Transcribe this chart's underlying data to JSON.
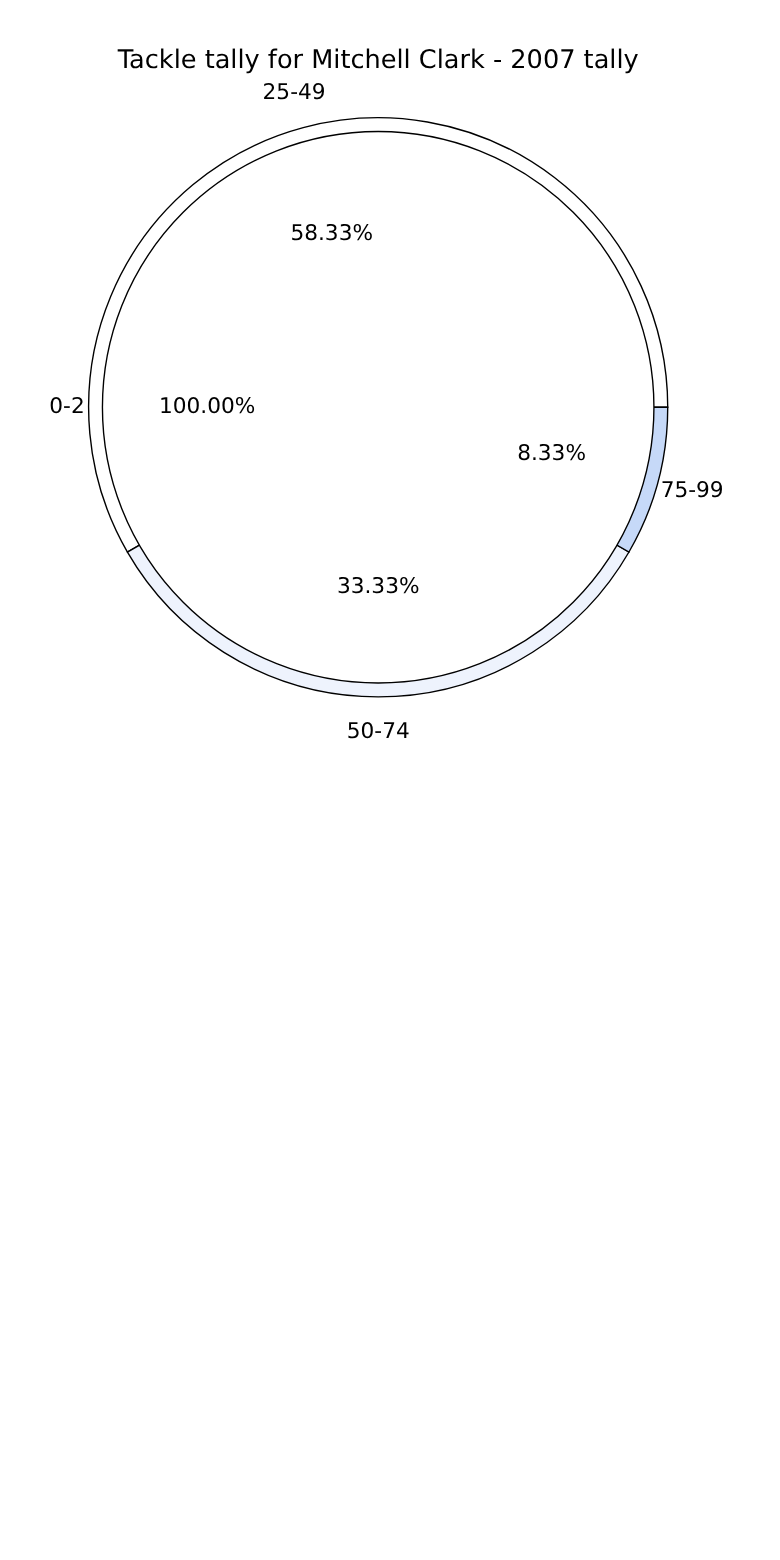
{
  "chart_data": [
    {
      "type": "pie",
      "title": "Tackle tally for Mitchell Clark - 2007 tally",
      "categories": [
        "0-2"
      ],
      "values": [
        100
      ],
      "colors": [
        "#ffffff"
      ],
      "value_labels": [
        "100.00%"
      ],
      "legend": false
    },
    {
      "type": "pie",
      "categories": [
        "25-49",
        "50-74",
        "75-99"
      ],
      "values": [
        58.33,
        33.33,
        8.33
      ],
      "colors": [
        "#ffffff",
        "#eef3fd",
        "#c6d9f8"
      ],
      "value_labels": [
        "58.33%",
        "33.33%",
        "8.33%"
      ],
      "legend": false
    }
  ]
}
